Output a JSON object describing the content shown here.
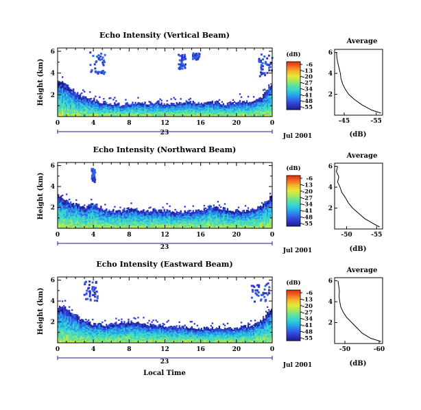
{
  "chart_data": [
    {
      "type": "heatmap",
      "title": "Echo Intensity (Vertical Beam)",
      "ylabel": "Height (km)",
      "yticks": [
        "6",
        "4",
        "2"
      ],
      "xticks": [
        "0",
        "4",
        "8",
        "12",
        "16",
        "20",
        "0"
      ],
      "day_label": "23",
      "date_label": "Jul 2001",
      "colorbar_unit": "(dB)",
      "colorbar_ticks": [
        "-6",
        "-13",
        "-20",
        "-27",
        "-34",
        "-41",
        "-48",
        "-55"
      ],
      "layer_top_km": [
        3.3,
        3.0,
        2.2,
        1.8,
        1.6,
        1.3,
        1.2,
        1.1,
        1.2,
        1.3,
        1.2,
        1.3,
        1.2,
        1.2,
        1.4,
        1.3,
        1.2,
        1.3,
        1.3,
        1.2,
        1.3,
        1.4,
        1.5,
        1.9,
        3.0
      ],
      "patches_km": [
        {
          "hour": 3.5,
          "hour_end": 5.2,
          "top": 6.0,
          "bottom": 4.0
        },
        {
          "hour": 13.4,
          "hour_end": 14.2,
          "top": 5.8,
          "bottom": 4.4
        },
        {
          "hour": 22.4,
          "hour_end": 23.9,
          "top": 5.8,
          "bottom": 3.8
        },
        {
          "hour": 15.0,
          "hour_end": 15.8,
          "top": 5.9,
          "bottom": 5.3
        }
      ],
      "average": {
        "title": "Average",
        "xlabel": "(dB)",
        "xticks": [
          "-45",
          "-55"
        ],
        "xlim": [
          -42,
          -57
        ],
        "yticks": [
          "6",
          "4",
          "2"
        ],
        "profile_height_km": [
          6.0,
          5.5,
          5.0,
          4.5,
          4.0,
          3.5,
          3.0,
          2.5,
          2.0,
          1.5,
          1.0,
          0.5,
          0.2
        ],
        "profile_db": [
          -42.6,
          -42.7,
          -43.0,
          -43.4,
          -43.8,
          -44.0,
          -44.5,
          -45.3,
          -46.4,
          -48.2,
          -50.5,
          -53.5,
          -56.5
        ]
      }
    },
    {
      "type": "heatmap",
      "title": "Echo Intensity (Northward Beam)",
      "ylabel": "Height (km)",
      "yticks": [
        "6",
        "4",
        "2"
      ],
      "xticks": [
        "0",
        "4",
        "8",
        "12",
        "16",
        "20",
        "0"
      ],
      "day_label": "23",
      "date_label": "Jul 2001",
      "colorbar_unit": "(dB)",
      "colorbar_ticks": [
        "-6",
        "-13",
        "-20",
        "-27",
        "-34",
        "-41",
        "-48",
        "-55"
      ],
      "layer_top_km": [
        3.2,
        2.6,
        2.3,
        2.0,
        2.4,
        1.9,
        1.7,
        1.6,
        1.9,
        1.8,
        1.7,
        1.8,
        1.7,
        1.6,
        1.6,
        1.6,
        1.7,
        2.1,
        2.0,
        1.8,
        1.7,
        1.6,
        1.8,
        2.2,
        3.1
      ],
      "patches_km": [
        {
          "hour": 3.7,
          "hour_end": 4.1,
          "top": 5.8,
          "bottom": 4.5
        }
      ],
      "average": {
        "title": "Average",
        "xlabel": "(dB)",
        "xticks": [
          "-50",
          "-55"
        ],
        "xlim": [
          -48,
          -56
        ],
        "yticks": [
          "6",
          "4",
          "2"
        ],
        "profile_height_km": [
          6.0,
          5.5,
          5.0,
          4.5,
          4.0,
          3.5,
          3.0,
          2.5,
          2.0,
          1.5,
          1.0,
          0.5,
          0.2
        ],
        "profile_db": [
          -48.5,
          -48.3,
          -48.7,
          -48.5,
          -48.9,
          -49.2,
          -49.8,
          -50.3,
          -51.0,
          -52.0,
          -53.0,
          -54.5,
          -55.5
        ]
      }
    },
    {
      "type": "heatmap",
      "title": "Echo Intensity (Eastward Beam)",
      "ylabel": "Height (km)",
      "yticks": [
        "6",
        "4",
        "2"
      ],
      "xticks": [
        "0",
        "4",
        "8",
        "12",
        "16",
        "20",
        "0"
      ],
      "day_label": "23",
      "date_label": "Jul 2001",
      "colorbar_unit": "(dB)",
      "colorbar_ticks": [
        "-6",
        "-13",
        "-20",
        "-27",
        "-34",
        "-41",
        "-48",
        "-55"
      ],
      "layer_top_km": [
        3.5,
        3.3,
        2.6,
        2.2,
        1.8,
        1.7,
        1.8,
        2.0,
        2.0,
        1.9,
        1.8,
        1.7,
        1.6,
        1.6,
        1.5,
        1.5,
        1.4,
        1.4,
        1.5,
        1.3,
        1.4,
        1.6,
        1.7,
        2.2,
        3.4
      ],
      "patches_km": [
        {
          "hour": 2.8,
          "hour_end": 4.4,
          "top": 6.0,
          "bottom": 4.1
        },
        {
          "hour": 21.4,
          "hour_end": 23.6,
          "top": 5.9,
          "bottom": 4.0
        }
      ],
      "average": {
        "title": "Average",
        "xlabel": "(dB)",
        "xticks": [
          "-50",
          "-60"
        ],
        "xlim": [
          -47,
          -61
        ],
        "yticks": [
          "6",
          "4",
          "2"
        ],
        "profile_height_km": [
          6.0,
          5.5,
          5.0,
          4.5,
          4.0,
          3.5,
          3.0,
          2.5,
          2.0,
          1.5,
          1.0,
          0.5,
          0.2
        ],
        "profile_db": [
          -48.0,
          -48.2,
          -48.4,
          -48.3,
          -48.5,
          -48.8,
          -49.5,
          -50.5,
          -52.0,
          -53.5,
          -55.0,
          -57.5,
          -60.5
        ]
      }
    }
  ],
  "xlabel_bottom": "Local Time",
  "colorbar_colors": [
    "#1b1f8c",
    "#2e36c8",
    "#2f66e8",
    "#25a4e8",
    "#34d3d6",
    "#5de0a0",
    "#a9e85a",
    "#e8e83a",
    "#f6b52a",
    "#f06a22",
    "#e02a18"
  ]
}
